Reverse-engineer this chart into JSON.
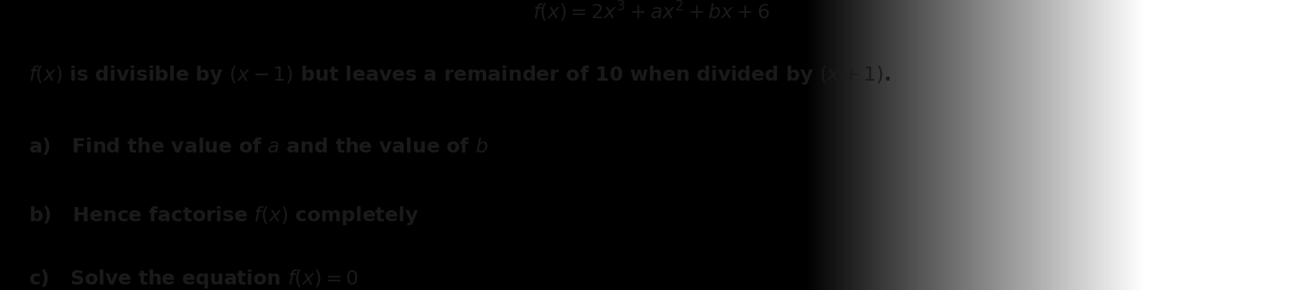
{
  "bg_color_left": "#b8b8b8",
  "bg_color_right": "#d8d8d8",
  "bg_color_mid": "#cccccc",
  "text_color": "#1a1a1a",
  "title_line": "$f(x) = 2x^3 + ax^2 + bx + 6$",
  "line1": "$f(x)$ is divisible by $(x - 1)$ but leaves a remainder of 10 when divided by $(x + 1)$.",
  "line_a": "a)   Find the value of $a$ and the value of $b$",
  "line_b": "b)   Hence factorise $f(x)$ completely",
  "line_c": "c)   Solve the equation $f(x) = 0$",
  "title_fontsize": 18,
  "body_fontsize": 18,
  "fig_width": 16.45,
  "fig_height": 3.67
}
